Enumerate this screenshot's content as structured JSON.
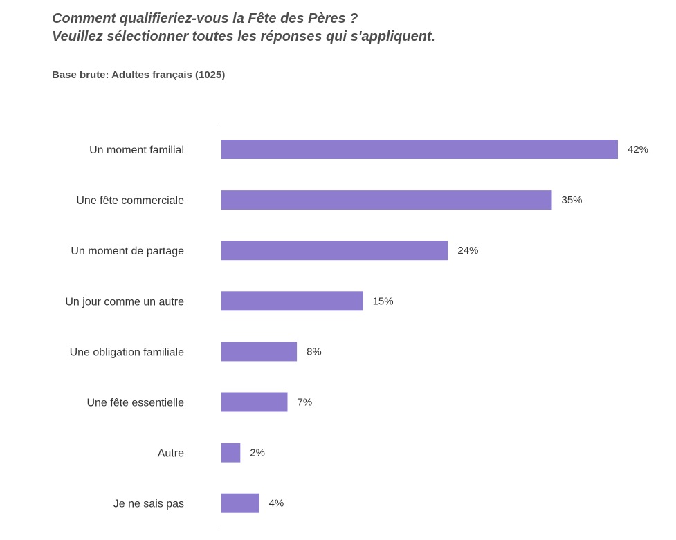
{
  "header": {
    "title_line1": "Comment qualifieriez-vous la Fête des Pères ?",
    "title_line2": "Veuillez sélectionner toutes les réponses qui s'appliquent.",
    "base": "Base brute: Adultes français (1025)"
  },
  "colors": {
    "bar": "#8e7ccf",
    "axis": "#333333"
  },
  "chart_data": {
    "type": "bar",
    "orientation": "horizontal",
    "categories": [
      "Un moment familial",
      "Une fête commerciale",
      "Un moment de partage",
      "Un jour comme un autre",
      "Une obligation familiale",
      "Une fête essentielle",
      "Autre",
      "Je ne sais pas"
    ],
    "values": [
      42,
      35,
      24,
      15,
      8,
      7,
      2,
      4
    ],
    "value_labels": [
      "42%",
      "35%",
      "24%",
      "15%",
      "8%",
      "7%",
      "2%",
      "4%"
    ],
    "unit": "%",
    "xlim": [
      0,
      42
    ],
    "grid": false,
    "legend": "none"
  }
}
